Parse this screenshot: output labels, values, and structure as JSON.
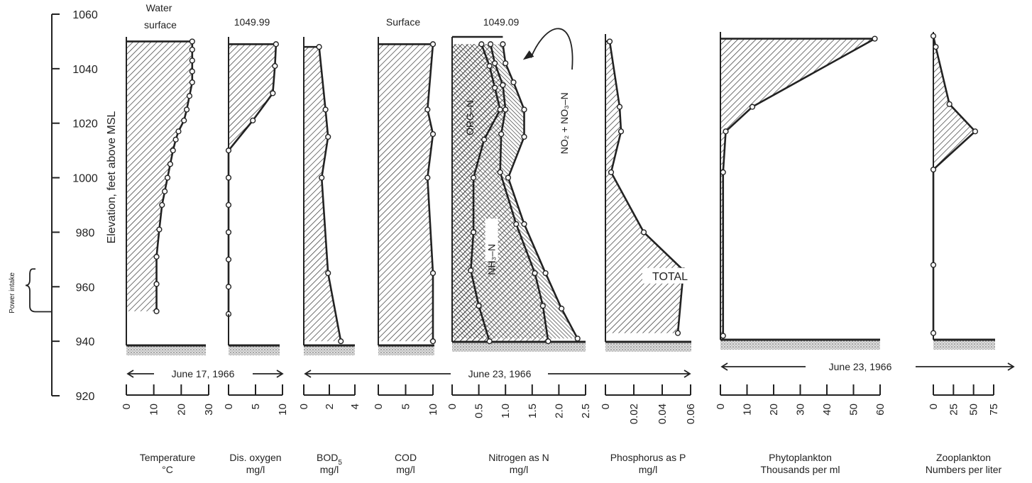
{
  "chart_data": {
    "type": "area",
    "elevation_axis": {
      "label": "Elevation, feet above MSL",
      "ticks": [
        1060,
        1040,
        1020,
        1000,
        980,
        960,
        940,
        920
      ],
      "range": [
        920,
        1060
      ],
      "power_intake_label": "Power intake",
      "power_intake_range": [
        955,
        966
      ]
    },
    "date_labels": [
      "June 17, 1966",
      "June 23, 1966",
      "June 23, 1966"
    ],
    "headers": {
      "water_surface": "Water surface",
      "water_surface_line1": "Water",
      "water_surface_line2": "surface",
      "do_surface_elev": "1049.99",
      "cod_surface": "Surface",
      "nitrogen_surface_elev": "1049.09"
    },
    "panels": [
      {
        "id": "temperature",
        "caption_line1": "Temperature",
        "caption_line2": "°C",
        "ticks": [
          "0",
          "10",
          "20",
          "30"
        ],
        "tick_values": [
          0,
          10,
          20,
          30
        ],
        "xlim": [
          0,
          30
        ],
        "profile": [
          [
            24,
            1050
          ],
          [
            24,
            1047
          ],
          [
            24,
            1043
          ],
          [
            24,
            1039
          ],
          [
            24,
            1035
          ],
          [
            23,
            1030
          ],
          [
            22,
            1025
          ],
          [
            21,
            1021
          ],
          [
            19,
            1017
          ],
          [
            18,
            1014
          ],
          [
            17,
            1010
          ],
          [
            16,
            1005
          ],
          [
            15,
            1000
          ],
          [
            14,
            995
          ],
          [
            13,
            990
          ],
          [
            12,
            981
          ],
          [
            11,
            971
          ],
          [
            11,
            961
          ],
          [
            11,
            951
          ]
        ]
      },
      {
        "id": "dissolved-oxygen",
        "caption_line1": "Dis. oxygen",
        "caption_line2": "mg/l",
        "ticks": [
          "0",
          "5",
          "10"
        ],
        "tick_values": [
          0,
          5,
          10
        ],
        "xlim": [
          0,
          10
        ],
        "profile": [
          [
            8.8,
            1049
          ],
          [
            8.6,
            1041
          ],
          [
            8.2,
            1031
          ],
          [
            4.5,
            1021
          ],
          [
            0,
            1010
          ],
          [
            0,
            1000
          ],
          [
            0,
            990
          ],
          [
            0,
            980
          ],
          [
            0,
            970
          ],
          [
            0,
            960
          ],
          [
            0,
            950
          ]
        ]
      },
      {
        "id": "bod5",
        "caption_line1": "BOD",
        "caption_sub": "5",
        "caption_line2": "mg/l",
        "ticks": [
          "0",
          "2",
          "4"
        ],
        "tick_values": [
          0,
          2,
          4
        ],
        "xlim": [
          0,
          4
        ],
        "profile": [
          [
            1.2,
            1048
          ],
          [
            1.7,
            1025
          ],
          [
            1.9,
            1015
          ],
          [
            1.4,
            1000
          ],
          [
            1.9,
            965
          ],
          [
            2.9,
            940
          ]
        ]
      },
      {
        "id": "cod",
        "caption_line1": "COD",
        "caption_line2": "mg/l",
        "ticks": [
          "0",
          "5",
          "10"
        ],
        "tick_values": [
          0,
          5,
          10
        ],
        "xlim": [
          0,
          10
        ],
        "profile": [
          [
            10,
            1049
          ],
          [
            9,
            1025
          ],
          [
            10,
            1016
          ],
          [
            9,
            1000
          ],
          [
            10,
            965
          ],
          [
            10,
            940
          ]
        ]
      },
      {
        "id": "nitrogen",
        "caption_line1": "Nitrogen as N",
        "caption_line2": "mg/l",
        "ticks": [
          "0",
          "0.5",
          "1.0",
          "1.5",
          "2.0",
          "2.5"
        ],
        "tick_values": [
          0,
          0.5,
          1.0,
          1.5,
          2.0,
          2.5
        ],
        "xlim": [
          0,
          2.5
        ],
        "series": [
          {
            "name": "ORG–N",
            "points": [
              [
                0.55,
                1049
              ],
              [
                0.7,
                1041
              ],
              [
                0.8,
                1033
              ],
              [
                0.9,
                1025
              ],
              [
                0.6,
                1014
              ],
              [
                0.4,
                1000
              ],
              [
                0.4,
                980
              ],
              [
                0.35,
                966
              ],
              [
                0.5,
                953
              ],
              [
                0.7,
                940
              ]
            ]
          },
          {
            "name": "NH₃–N",
            "points": [
              [
                0.72,
                1049
              ],
              [
                0.8,
                1042
              ],
              [
                0.95,
                1034
              ],
              [
                1.0,
                1025
              ],
              [
                0.92,
                1016
              ],
              [
                0.9,
                1002
              ],
              [
                1.2,
                983
              ],
              [
                1.55,
                965
              ],
              [
                1.7,
                953
              ],
              [
                1.8,
                940
              ]
            ]
          },
          {
            "name": "NO₂ + NO₃–N",
            "points": [
              [
                0.95,
                1049
              ],
              [
                1.0,
                1042
              ],
              [
                1.15,
                1035
              ],
              [
                1.35,
                1025
              ],
              [
                1.35,
                1015
              ],
              [
                1.05,
                1000
              ],
              [
                1.35,
                983
              ],
              [
                1.75,
                965
              ],
              [
                2.05,
                952
              ],
              [
                2.35,
                941
              ]
            ]
          }
        ],
        "annotations": [
          "ORG–N",
          "NH₃–N",
          "NO₂ + NO₃–N"
        ]
      },
      {
        "id": "phosphorus",
        "caption_line1": "Phosphorus as P",
        "caption_line2": "mg/l",
        "ticks": [
          "0",
          "0.02",
          "0.04",
          "0.06"
        ],
        "tick_values": [
          0,
          0.02,
          0.04,
          0.06
        ],
        "xlim": [
          0,
          0.06
        ],
        "profile": [
          [
            0.003,
            1050
          ],
          [
            0.01,
            1026
          ],
          [
            0.011,
            1017
          ],
          [
            0.004,
            1002
          ],
          [
            0.027,
            980
          ],
          [
            0.055,
            966
          ],
          [
            0.051,
            943
          ]
        ],
        "annotation": "TOTAL"
      },
      {
        "id": "phytoplankton",
        "caption_line1": "Phytoplankton",
        "caption_line2": "Thousands per ml",
        "ticks": [
          "0",
          "10",
          "20",
          "30",
          "40",
          "50",
          "60"
        ],
        "tick_values": [
          0,
          10,
          20,
          30,
          40,
          50,
          60
        ],
        "xlim": [
          0,
          60
        ],
        "profile": [
          [
            58,
            1051
          ],
          [
            12,
            1026
          ],
          [
            2,
            1017
          ],
          [
            1,
            1002
          ],
          [
            1,
            942
          ]
        ]
      },
      {
        "id": "zooplankton",
        "caption_line1": "Zooplankton",
        "caption_line2": "Numbers per liter",
        "ticks": [
          "0",
          "25",
          "50",
          "75"
        ],
        "tick_values": [
          0,
          25,
          50,
          75
        ],
        "xlim": [
          0,
          75
        ],
        "profile": [
          [
            0,
            1052
          ],
          [
            3,
            1048
          ],
          [
            20,
            1027
          ],
          [
            52,
            1017
          ],
          [
            0,
            1003
          ],
          [
            0,
            968
          ],
          [
            0,
            943
          ]
        ]
      }
    ]
  }
}
